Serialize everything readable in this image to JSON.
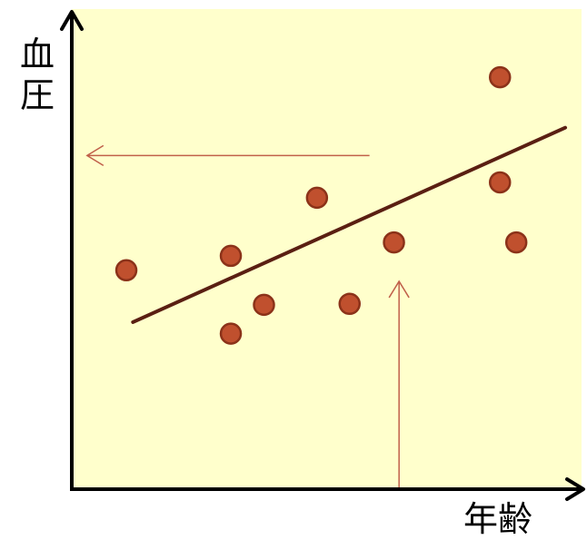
{
  "chart_data": {
    "type": "scatter",
    "title": "",
    "xlabel": "年齢",
    "ylabel_chars": [
      "血",
      "圧"
    ],
    "ylabel": "血圧",
    "grid": false,
    "legend": "none",
    "xlim": [
      0,
      100
    ],
    "ylim": [
      0,
      100
    ],
    "points": [
      {
        "x": 10.7,
        "y": 45.6
      },
      {
        "x": 31.2,
        "y": 48.6
      },
      {
        "x": 31.2,
        "y": 32.4
      },
      {
        "x": 37.7,
        "y": 38.4
      },
      {
        "x": 48.1,
        "y": 60.7
      },
      {
        "x": 54.5,
        "y": 38.6
      },
      {
        "x": 63.2,
        "y": 51.4
      },
      {
        "x": 84.0,
        "y": 85.8
      },
      {
        "x": 84.0,
        "y": 63.9
      },
      {
        "x": 87.2,
        "y": 51.4
      }
    ],
    "trend_line": {
      "x": [
        12.0,
        96.8
      ],
      "y": [
        34.8,
        75.3
      ]
    },
    "annotations": [
      {
        "type": "arrow",
        "direction": "up",
        "x": 64.2,
        "from_y": 0.0,
        "to_y": 43.3
      },
      {
        "type": "arrow",
        "direction": "left",
        "y": 69.5,
        "from_x": 58.4,
        "to_x": 3.0
      }
    ],
    "colors": {
      "plot_background": "#ffffcc",
      "point_fill": "#c0502e",
      "point_stroke": "#8b3219",
      "trend_line": "#5a1f12",
      "annotation_arrow": "#c0604a",
      "axis": "#000000"
    }
  }
}
